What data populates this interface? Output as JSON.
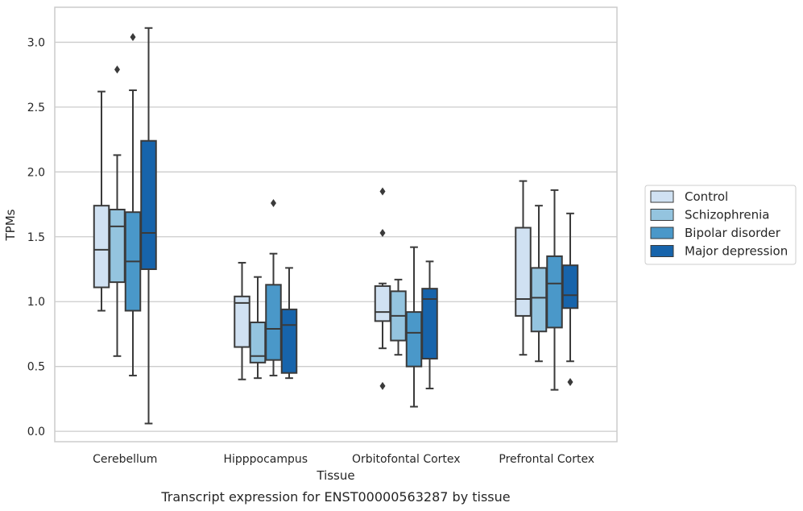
{
  "chart_data": {
    "type": "box",
    "xlabel": "Tissue",
    "ylabel": "TPMs",
    "caption": "Transcript expression for ENST00000563287 by tissue",
    "ylim": [
      -0.08,
      3.27
    ],
    "yticks": [
      0.0,
      0.5,
      1.0,
      1.5,
      2.0,
      2.5,
      3.0
    ],
    "ytick_labels": [
      "0.0",
      "0.5",
      "1.0",
      "1.5",
      "2.0",
      "2.5",
      "3.0"
    ],
    "grid": "horizontal",
    "legend_position": "right",
    "categories": [
      "Cerebellum",
      "Hipppocampus",
      "Orbitofontal Cortex",
      "Prefrontal Cortex"
    ],
    "series": [
      {
        "name": "Control",
        "color": "#d0e1f2",
        "boxes": [
          {
            "whisker_low": 0.93,
            "q1": 1.11,
            "median": 1.4,
            "q3": 1.74,
            "whisker_high": 2.62,
            "outliers": []
          },
          {
            "whisker_low": 0.4,
            "q1": 0.65,
            "median": 0.99,
            "q3": 1.04,
            "whisker_high": 1.3,
            "outliers": []
          },
          {
            "whisker_low": 0.64,
            "q1": 0.85,
            "median": 0.92,
            "q3": 1.12,
            "whisker_high": 1.14,
            "outliers": [
              1.85,
              1.53,
              0.35
            ]
          },
          {
            "whisker_low": 0.59,
            "q1": 0.89,
            "median": 1.02,
            "q3": 1.57,
            "whisker_high": 1.93,
            "outliers": []
          }
        ]
      },
      {
        "name": "Schizophrenia",
        "color": "#94c4df",
        "boxes": [
          {
            "whisker_low": 0.58,
            "q1": 1.15,
            "median": 1.58,
            "q3": 1.71,
            "whisker_high": 2.13,
            "outliers": [
              2.79
            ]
          },
          {
            "whisker_low": 0.41,
            "q1": 0.53,
            "median": 0.58,
            "q3": 0.84,
            "whisker_high": 1.19,
            "outliers": []
          },
          {
            "whisker_low": 0.59,
            "q1": 0.7,
            "median": 0.89,
            "q3": 1.08,
            "whisker_high": 1.17,
            "outliers": []
          },
          {
            "whisker_low": 0.54,
            "q1": 0.77,
            "median": 1.03,
            "q3": 1.26,
            "whisker_high": 1.74,
            "outliers": []
          }
        ]
      },
      {
        "name": "Bipolar disorder",
        "color": "#4a98c9",
        "boxes": [
          {
            "whisker_low": 0.43,
            "q1": 0.93,
            "median": 1.31,
            "q3": 1.69,
            "whisker_high": 2.63,
            "outliers": [
              3.04
            ]
          },
          {
            "whisker_low": 0.43,
            "q1": 0.55,
            "median": 0.79,
            "q3": 1.13,
            "whisker_high": 1.37,
            "outliers": [
              1.76
            ]
          },
          {
            "whisker_low": 0.19,
            "q1": 0.5,
            "median": 0.76,
            "q3": 0.92,
            "whisker_high": 1.42,
            "outliers": []
          },
          {
            "whisker_low": 0.32,
            "q1": 0.8,
            "median": 1.14,
            "q3": 1.35,
            "whisker_high": 1.86,
            "outliers": []
          }
        ]
      },
      {
        "name": "Major depression",
        "color": "#1764ab",
        "boxes": [
          {
            "whisker_low": 0.06,
            "q1": 1.25,
            "median": 1.53,
            "q3": 2.24,
            "whisker_high": 3.11,
            "outliers": []
          },
          {
            "whisker_low": 0.41,
            "q1": 0.45,
            "median": 0.82,
            "q3": 0.94,
            "whisker_high": 1.26,
            "outliers": []
          },
          {
            "whisker_low": 0.33,
            "q1": 0.56,
            "median": 1.02,
            "q3": 1.1,
            "whisker_high": 1.31,
            "outliers": []
          },
          {
            "whisker_low": 0.54,
            "q1": 0.95,
            "median": 1.05,
            "q3": 1.28,
            "whisker_high": 1.68,
            "outliers": [
              0.38
            ]
          }
        ]
      }
    ]
  }
}
